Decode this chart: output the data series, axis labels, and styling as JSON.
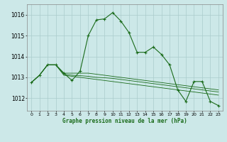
{
  "background_color": "#cce8e8",
  "grid_color": "#aacccc",
  "line_color": "#1a6b1a",
  "title": "Graphe pression niveau de la mer (hPa)",
  "hours": [
    0,
    1,
    2,
    3,
    4,
    5,
    6,
    7,
    8,
    9,
    10,
    11,
    12,
    13,
    14,
    15,
    16,
    17,
    18,
    19,
    20,
    21,
    22,
    23
  ],
  "ylim": [
    1011.4,
    1016.5
  ],
  "yticks": [
    1012,
    1013,
    1014,
    1015,
    1016
  ],
  "main_series": [
    1012.75,
    1013.1,
    1013.6,
    1013.6,
    1013.2,
    1012.85,
    1013.3,
    1015.0,
    1015.75,
    1015.8,
    1016.1,
    1015.7,
    1015.15,
    1014.2,
    1014.2,
    1014.45,
    1014.1,
    1013.6,
    1012.4,
    1011.85,
    1012.8,
    1012.8,
    1011.85,
    1011.65
  ],
  "flat_series": [
    [
      1012.75,
      1013.1,
      1013.6,
      1013.6,
      1013.2,
      1013.2,
      1013.2,
      1013.2,
      1013.15,
      1013.1,
      1013.05,
      1013.0,
      1012.95,
      1012.9,
      1012.85,
      1012.8,
      1012.75,
      1012.7,
      1012.65,
      1012.6,
      1012.55,
      1012.5,
      1012.45,
      1012.4
    ],
    [
      1012.75,
      1013.1,
      1013.6,
      1013.6,
      1013.1,
      1013.05,
      1013.0,
      1012.95,
      1012.9,
      1012.85,
      1012.8,
      1012.75,
      1012.7,
      1012.65,
      1012.6,
      1012.55,
      1012.5,
      1012.45,
      1012.4,
      1012.35,
      1012.3,
      1012.25,
      1012.2,
      1012.15
    ],
    [
      1012.75,
      1013.1,
      1013.6,
      1013.6,
      1013.15,
      1013.1,
      1013.08,
      1013.05,
      1013.0,
      1012.98,
      1012.95,
      1012.9,
      1012.85,
      1012.8,
      1012.75,
      1012.7,
      1012.65,
      1012.6,
      1012.55,
      1012.5,
      1012.45,
      1012.4,
      1012.35,
      1012.3
    ]
  ]
}
